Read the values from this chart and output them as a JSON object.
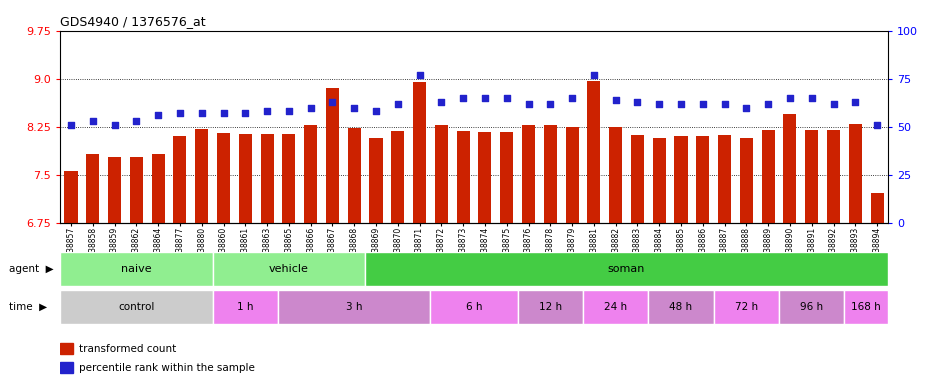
{
  "title": "GDS4940 / 1376576_at",
  "samples": [
    "GSM338857",
    "GSM338858",
    "GSM338859",
    "GSM338862",
    "GSM338864",
    "GSM338877",
    "GSM338880",
    "GSM338860",
    "GSM338861",
    "GSM338863",
    "GSM338865",
    "GSM338866",
    "GSM338867",
    "GSM338868",
    "GSM338869",
    "GSM338870",
    "GSM338871",
    "GSM338872",
    "GSM338873",
    "GSM338874",
    "GSM338875",
    "GSM338876",
    "GSM338878",
    "GSM338879",
    "GSM338881",
    "GSM338882",
    "GSM338883",
    "GSM338884",
    "GSM338885",
    "GSM338886",
    "GSM338887",
    "GSM338888",
    "GSM338889",
    "GSM338890",
    "GSM338891",
    "GSM338892",
    "GSM338893",
    "GSM338894"
  ],
  "bar_values": [
    7.56,
    7.82,
    7.78,
    7.78,
    7.82,
    8.1,
    8.22,
    8.15,
    8.13,
    8.13,
    8.13,
    8.27,
    8.85,
    8.23,
    8.07,
    8.18,
    8.95,
    8.27,
    8.18,
    8.17,
    8.17,
    8.27,
    8.27,
    8.25,
    8.97,
    8.25,
    8.12,
    8.07,
    8.1,
    8.1,
    8.12,
    8.07,
    8.2,
    8.45,
    8.2,
    8.2,
    8.3,
    7.22
  ],
  "dot_values": [
    51,
    53,
    51,
    53,
    56,
    57,
    57,
    57,
    57,
    58,
    58,
    60,
    63,
    60,
    58,
    62,
    77,
    63,
    65,
    65,
    65,
    62,
    62,
    65,
    77,
    64,
    63,
    62,
    62,
    62,
    62,
    60,
    62,
    65,
    65,
    62,
    63,
    51
  ],
  "ylim_left": [
    6.75,
    9.75
  ],
  "ylim_right": [
    0,
    100
  ],
  "yticks_left": [
    6.75,
    7.5,
    8.25,
    9.0,
    9.75
  ],
  "yticks_right": [
    0,
    25,
    50,
    75,
    100
  ],
  "bar_color": "#CC2200",
  "dot_color": "#2222CC",
  "agent_groups": [
    {
      "label": "naive",
      "start": 0,
      "end": 7,
      "color": "#90EE90"
    },
    {
      "label": "vehicle",
      "start": 7,
      "end": 14,
      "color": "#90EE90"
    },
    {
      "label": "soman",
      "start": 14,
      "end": 38,
      "color": "#44CC44"
    }
  ],
  "time_groups": [
    {
      "label": "control",
      "start": 0,
      "end": 7,
      "color": "#CCCCCC"
    },
    {
      "label": "1 h",
      "start": 7,
      "end": 10,
      "color": "#EE82EE"
    },
    {
      "label": "3 h",
      "start": 10,
      "end": 17,
      "color": "#CC66CC"
    },
    {
      "label": "6 h",
      "start": 17,
      "end": 21,
      "color": "#EE82EE"
    },
    {
      "label": "12 h",
      "start": 21,
      "end": 24,
      "color": "#CC66CC"
    },
    {
      "label": "24 h",
      "start": 24,
      "end": 27,
      "color": "#EE82EE"
    },
    {
      "label": "48 h",
      "start": 27,
      "end": 30,
      "color": "#CC66CC"
    },
    {
      "label": "72 h",
      "start": 30,
      "end": 33,
      "color": "#EE82EE"
    },
    {
      "label": "96 h",
      "start": 33,
      "end": 36,
      "color": "#CC66CC"
    },
    {
      "label": "168 h",
      "start": 36,
      "end": 38,
      "color": "#EE82EE"
    }
  ],
  "legend_items": [
    {
      "label": "transformed count",
      "color": "#CC2200"
    },
    {
      "label": "percentile rank within the sample",
      "color": "#2222CC"
    }
  ]
}
